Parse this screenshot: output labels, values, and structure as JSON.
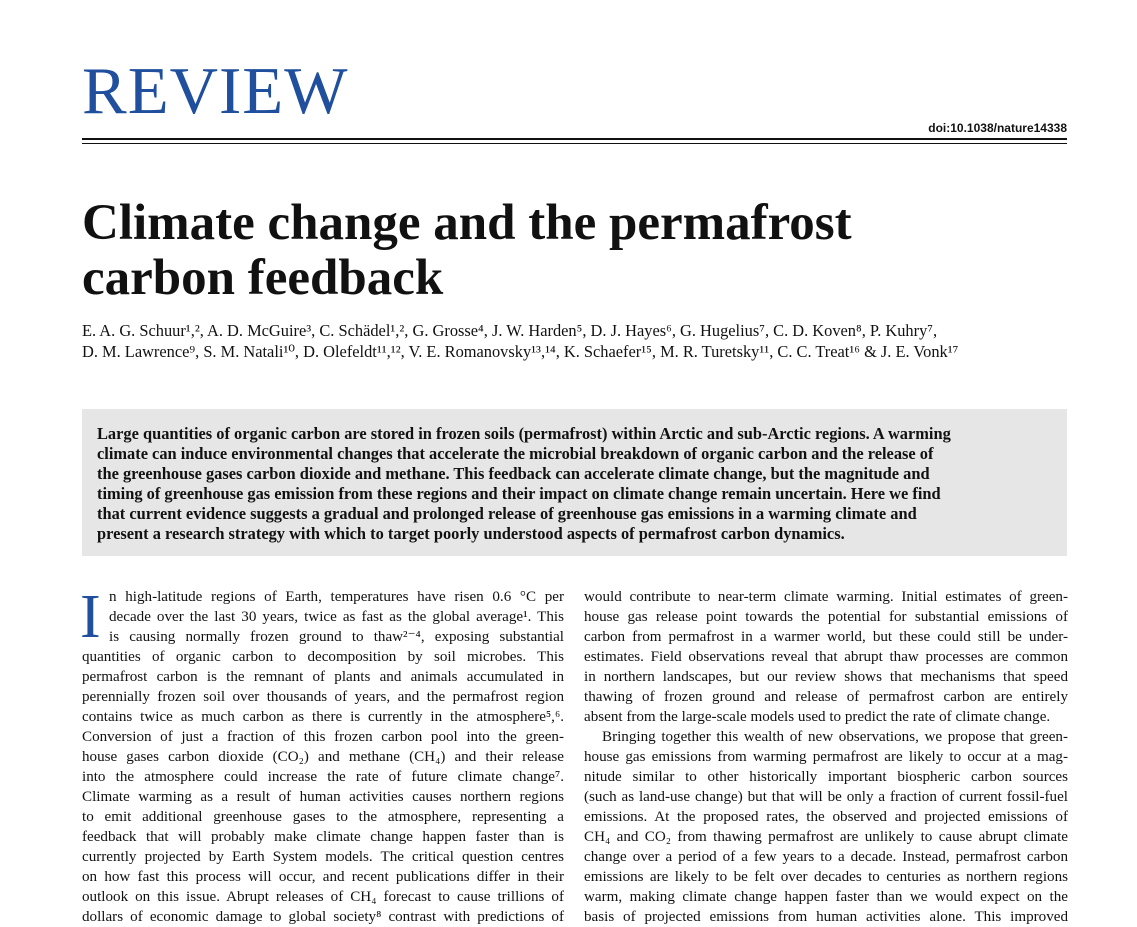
{
  "header": {
    "section": "REVIEW",
    "doi": "doi:10.1038/nature14338"
  },
  "title_lines": [
    "Climate change and the permafrost",
    "carbon feedback"
  ],
  "authors_lines": [
    "E. A. G. Schuur¹,², A. D. McGuire³, C. Schädel¹,², G. Grosse⁴, J. W. Harden⁵, D. J. Hayes⁶, G. Hugelius⁷, C. D. Koven⁸, P. Kuhry⁷,",
    "D. M. Lawrence⁹, S. M. Natali¹⁰, D. Olefeldt¹¹,¹², V. E. Romanovsky¹³,¹⁴, K. Schaefer¹⁵, M. R. Turetsky¹¹, C. C. Treat¹⁶ & J. E. Vonk¹⁷"
  ],
  "abstract_lines": [
    "Large quantities of organic carbon are stored in frozen soils (permafrost) within Arctic and sub-Arctic regions. A warming",
    "climate can induce environmental changes that accelerate the microbial breakdown of organic carbon and the release of",
    "the greenhouse gases carbon dioxide and methane. This feedback can accelerate climate change, but the magnitude and",
    "timing of greenhouse gas emission from these regions and their impact on climate change remain uncertain. Here we find",
    "that current evidence suggests a gradual and prolonged release of greenhouse gas emissions in a warming climate and",
    "present a research strategy with which to target poorly understood aspects of permafrost carbon dynamics."
  ],
  "body": {
    "dropcap": "I",
    "left": [
      "n high-latitude regions of Earth, temperatures have risen 0.6 °C per",
      "decade over the last 30 years, twice as fast as the global average¹. This",
      "is causing normally frozen ground to thaw²⁻⁴, exposing substantial",
      "quantities of organic carbon to decomposition by soil microbes. This",
      "permafrost carbon is the remnant of plants and animals accumulated in",
      "perennially frozen soil over thousands of years, and the permafrost region",
      "contains twice as much carbon as there is currently in the atmosphere⁵,⁶.",
      "Conversion of just a fraction of this frozen carbon pool into the green-",
      "house gases carbon dioxide (CO₂) and methane (CH₄) and their release",
      "into the atmosphere could increase the rate of future climate change⁷.",
      "Climate warming as a result of human activities causes northern regions",
      "to emit additional greenhouse gases to the atmosphere, representing a",
      "feedback that will probably make climate change happen faster than is",
      "currently projected by Earth System models. The critical question centres",
      "on how fast this process will occur, and recent publications differ in their",
      "outlook on this issue. Abrupt releases of CH₄ forecast to cause trillions of",
      "dollars of economic damage to global society⁸ contrast with predictions of"
    ],
    "right": [
      "would contribute to near-term climate warming. Initial estimates of green-",
      "house gas release point towards the potential for substantial emissions of",
      "carbon from permafrost in a warmer world, but these could still be under-",
      "estimates. Field observations reveal that abrupt thaw processes are common",
      "in northern landscapes, but our review shows that mechanisms that speed",
      "thawing of frozen ground and release of permafrost carbon are entirely",
      "absent from the large-scale models used to predict the rate of climate change.",
      "Bringing together this wealth of new observations, we propose that green-",
      "house gas emissions from warming permafrost are likely to occur at a mag-",
      "nitude similar to other historically important biospheric carbon sources",
      "(such as land-use change) but that will be only a fraction of current fossil-fuel",
      "emissions. At the proposed rates, the observed and projected emissions of",
      "CH₄ and CO₂ from thawing permafrost are unlikely to cause abrupt climate",
      "change over a period of a few years to a decade. Instead, permafrost carbon",
      "emissions are likely to be felt over decades to centuries as northern regions",
      "warm, making climate change happen faster than we would expect on the",
      "basis of projected emissions from human activities alone. This improved"
    ]
  }
}
